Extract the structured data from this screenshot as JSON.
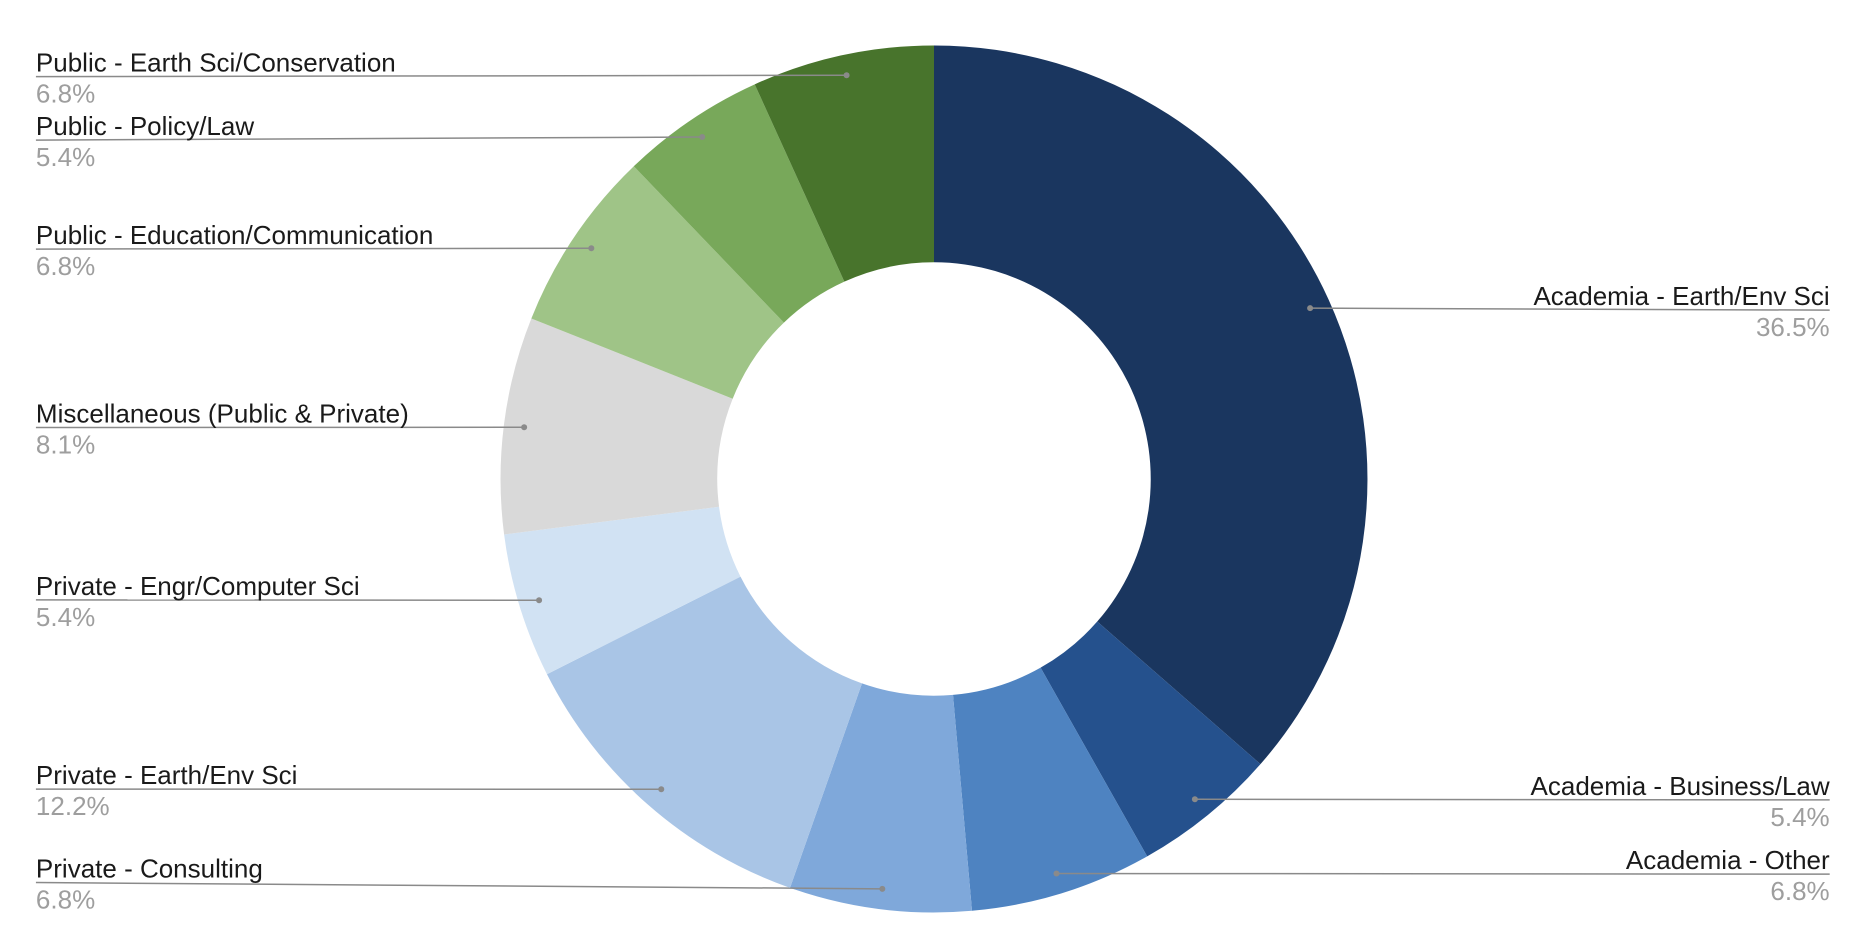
{
  "chart_data": {
    "type": "donut",
    "categories": [
      "Academia - Earth/Env Sci",
      "Academia - Business/Law",
      "Academia - Other",
      "Private - Consulting",
      "Private - Earth/Env Sci",
      "Private - Engr/Computer Sci",
      "Miscellaneous (Public & Private)",
      "Public - Education/Communication",
      "Public - Policy/Law",
      "Public - Earth Sci/Conservation"
    ],
    "values": [
      36.5,
      5.4,
      6.8,
      6.8,
      12.2,
      5.4,
      8.1,
      6.8,
      5.4,
      6.8
    ],
    "value_labels": [
      "36.5%",
      "5.4%",
      "6.8%",
      "6.8%",
      "12.2%",
      "5.4%",
      "8.1%",
      "6.8%",
      "5.4%",
      "6.8%"
    ],
    "colors": [
      "#1a365f",
      "#25518d",
      "#4e83c1",
      "#7fa8da",
      "#a9c5e6",
      "#d1e2f3",
      "#d9d9d9",
      "#9fc487",
      "#78a85a",
      "#48742c"
    ]
  }
}
